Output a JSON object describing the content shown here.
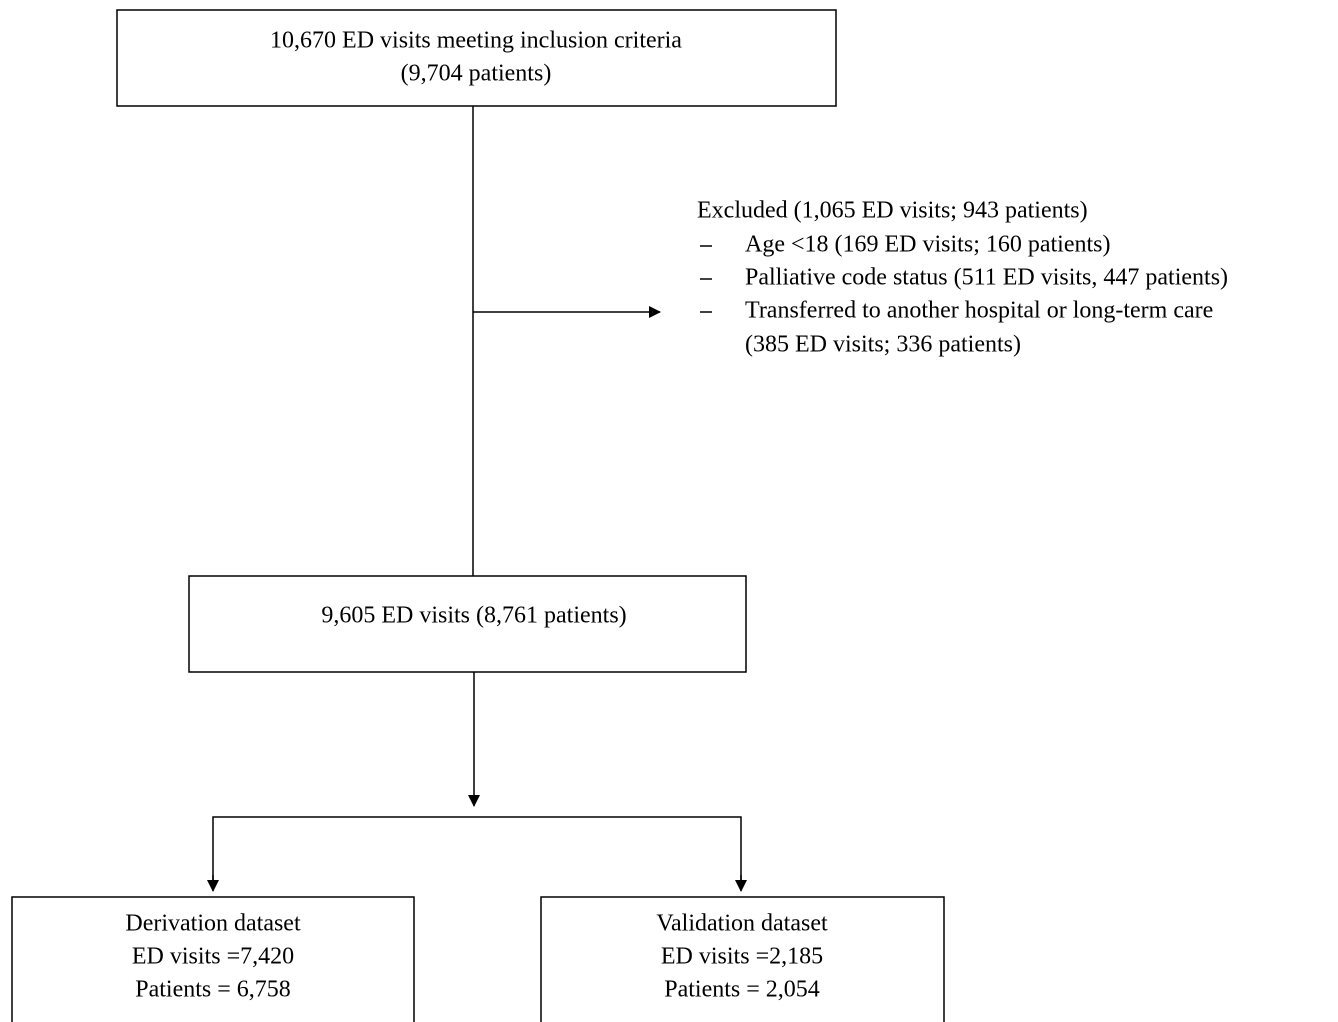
{
  "nodes": [
    {
      "lines": [
        "10,670 ED visits meeting inclusion criteria",
        "(9,704 patients)"
      ]
    },
    {
      "lines": [
        "9,605 ED visits (8,761 patients)"
      ]
    },
    {
      "lines": [
        "Derivation dataset",
        "ED visits =7,420",
        "Patients = 6,758"
      ]
    },
    {
      "lines": [
        "Validation dataset",
        "ED visits =2,185",
        "Patients = 2,054"
      ]
    }
  ],
  "exclusion": {
    "title": "Excluded (1,065 ED visits; 943 patients)",
    "items": [
      [
        "Age <18 (169 ED visits; 160 patients)"
      ],
      [
        "Palliative code status (511 ED visits, 447 patients)"
      ],
      [
        "Transferred to another hospital or long-term care",
        "(385 ED visits; 336 patients)"
      ]
    ]
  }
}
